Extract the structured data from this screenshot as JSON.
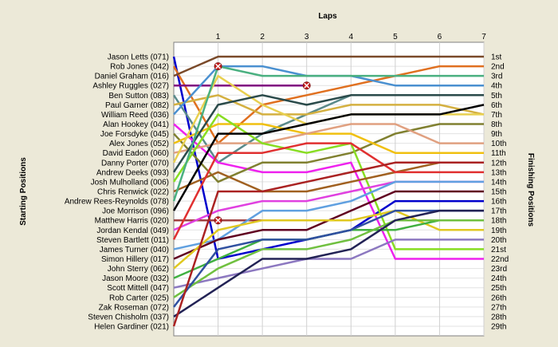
{
  "chart_data": {
    "type": "line",
    "title": "Laps",
    "ylabel_left": "Starting Positions",
    "ylabel_right": "Finishing Positions",
    "x": [
      1,
      2,
      3,
      4,
      5,
      6,
      7
    ],
    "position_range": [
      1,
      29
    ],
    "finish_labels": [
      "1st",
      "2nd",
      "3rd",
      "4th",
      "5th",
      "6th",
      "7th",
      "8th",
      "9th",
      "10th",
      "11th",
      "12th",
      "13th",
      "14th",
      "15th",
      "16th",
      "17th",
      "18th",
      "19th",
      "20th",
      "21st",
      "22nd",
      "23rd",
      "24th",
      "25th",
      "26th",
      "27th",
      "28th",
      "29th"
    ],
    "series": [
      {
        "name": "Jason Letts (071)",
        "color": "#0000cc",
        "start": 1,
        "positions": [
          22,
          21,
          20,
          19,
          16,
          16,
          16
        ]
      },
      {
        "name": "Rob Jones (042)",
        "color": "#e07020",
        "start": 2,
        "positions": [
          10,
          6,
          5,
          4,
          3,
          2,
          2
        ]
      },
      {
        "name": "Daniel Graham (016)",
        "color": "#7a4a2a",
        "start": 3,
        "positions": [
          1,
          1,
          1,
          1,
          1,
          1,
          1
        ]
      },
      {
        "name": "Ashley Ruggles (027)",
        "color": "#800080",
        "start": 4,
        "positions": [
          4,
          4,
          4
        ],
        "retired_lap": 3
      },
      {
        "name": "Ben Sutton (083)",
        "color": "#5a8a8a",
        "start": 5,
        "positions": [
          12,
          9,
          7,
          5,
          5,
          5,
          5
        ]
      },
      {
        "name": "Paul Garner (082)",
        "color": "#d4b040",
        "start": 6,
        "positions": [
          5,
          7,
          7,
          6,
          6,
          6,
          7
        ]
      },
      {
        "name": "William Reed (036)",
        "color": "#4a90d0",
        "start": 7,
        "positions": [
          2,
          2,
          3,
          3,
          4,
          4,
          4
        ]
      },
      {
        "name": "Alan Hookey (041)",
        "color": "#ee22ee",
        "start": 8,
        "positions": [
          12,
          13,
          13,
          12,
          22,
          22,
          22
        ]
      },
      {
        "name": "Joe Forsdyke (045)",
        "color": "#808030",
        "start": 9,
        "positions": [
          14,
          12,
          12,
          11,
          9,
          8,
          8
        ]
      },
      {
        "name": "Alex Jones (052)",
        "color": "#f0c010",
        "start": 10,
        "positions": [
          8,
          8,
          9,
          9,
          11,
          11,
          11
        ]
      },
      {
        "name": "David Eadon (060)",
        "color": "#e0a080",
        "start": 11,
        "positions": [
          10,
          10,
          9,
          8,
          8,
          10,
          10
        ]
      },
      {
        "name": "Danny Porter (070)",
        "color": "#e8d050",
        "start": 12,
        "positions": [
          3,
          6,
          8,
          7,
          7,
          7,
          7
        ]
      },
      {
        "name": "Andrew Deeks (093)",
        "color": "#2a4a4a",
        "start": 13,
        "positions": [
          6,
          5,
          6,
          5,
          5,
          5,
          5
        ]
      },
      {
        "name": "Josh Mulholland (006)",
        "color": "#88dd22",
        "start": 14,
        "positions": [
          7,
          10,
          11,
          10,
          21,
          21,
          21
        ]
      },
      {
        "name": "Chris Renwick (022)",
        "color": "#a06020",
        "start": 15,
        "positions": [
          13,
          15,
          15,
          14,
          13,
          12,
          12
        ]
      },
      {
        "name": "Andrew Rees-Reynolds (078)",
        "color": "#4ab080",
        "start": 16,
        "positions": [
          2,
          3,
          3,
          3,
          3,
          3,
          3
        ],
        "retired_lap": 1
      },
      {
        "name": "Joe Morrison (096)",
        "color": "#000000",
        "start": 17,
        "positions": [
          9,
          9,
          8,
          7,
          7,
          7,
          6
        ]
      },
      {
        "name": "Matthew Harris (020)",
        "color": "#a04040",
        "start": 18,
        "positions": [
          18,
          18,
          18
        ],
        "retired_lap": 1
      },
      {
        "name": "Jordan Kendal (049)",
        "color": "#e040e0",
        "start": 19,
        "positions": [
          17,
          16,
          16,
          15,
          14,
          14,
          14
        ]
      },
      {
        "name": "Steven Bartlett (011)",
        "color": "#e03030",
        "start": 20,
        "positions": [
          11,
          11,
          10,
          10,
          13,
          13,
          13
        ]
      },
      {
        "name": "James Turner (040)",
        "color": "#60a0e0",
        "start": 21,
        "positions": [
          20,
          17,
          17,
          16,
          14,
          14,
          14
        ]
      },
      {
        "name": "Simon Hillery (017)",
        "color": "#600020",
        "start": 22,
        "positions": [
          20,
          19,
          19,
          17,
          15,
          15,
          15
        ]
      },
      {
        "name": "John Sterry (062)",
        "color": "#e0c820",
        "start": 23,
        "positions": [
          19,
          18,
          18,
          18,
          17,
          19,
          19
        ]
      },
      {
        "name": "Jason Moore (032)",
        "color": "#40b040",
        "start": 24,
        "positions": [
          22,
          20,
          20,
          19,
          19,
          18,
          18
        ]
      },
      {
        "name": "Scott Mittell (047)",
        "color": "#8c78c0",
        "start": 25,
        "positions": [
          24,
          23,
          22,
          22,
          20,
          20,
          20
        ]
      },
      {
        "name": "Rob Carter (025)",
        "color": "#70c040",
        "start": 26,
        "positions": [
          23,
          21,
          21,
          20,
          18,
          18,
          18
        ]
      },
      {
        "name": "Zak Roseman (072)",
        "color": "#3050a0",
        "start": 27,
        "positions": [
          21,
          20,
          20,
          19,
          17,
          17,
          17
        ]
      },
      {
        "name": "Steven Chisholm (037)",
        "color": "#222255",
        "start": 28,
        "positions": [
          25,
          22,
          22,
          21,
          18,
          17,
          17
        ]
      },
      {
        "name": "Helen Gardiner (021)",
        "color": "#aa2222",
        "start": 29,
        "positions": [
          15,
          15,
          14,
          13,
          12,
          12,
          12
        ]
      }
    ]
  }
}
